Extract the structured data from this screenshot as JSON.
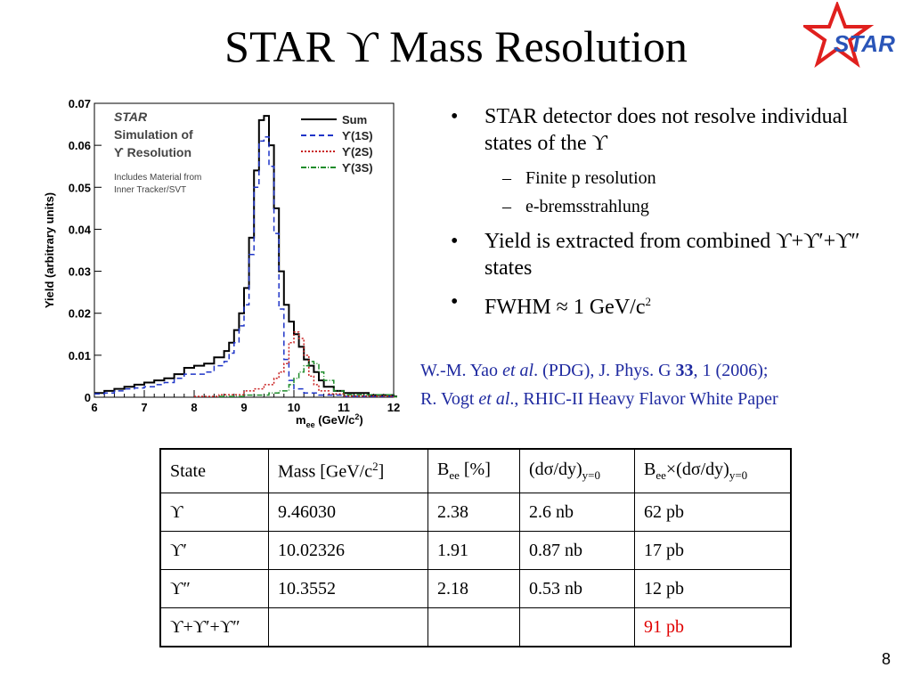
{
  "slide": {
    "title": "STAR ϒ Mass Resolution",
    "page_number": "8",
    "logo_text": "STAR"
  },
  "bullets": [
    {
      "level": 1,
      "text": "STAR detector does not resolve individual states of the ϒ"
    },
    {
      "level": 2,
      "text": "Finite p resolution"
    },
    {
      "level": 2,
      "text": "e-bremsstrahlung"
    },
    {
      "level": 1,
      "text": "Yield is extracted from combined ϒ+ϒ′+ϒ″ states"
    },
    {
      "level": 1,
      "text": "FWHM ≈ 1 GeV/c",
      "sup": "2"
    }
  ],
  "reference": {
    "line1_a": "W.-M. Yao ",
    "line1_b": "et al",
    "line1_c": ". (PDG), J. Phys. G ",
    "line1_d": "33",
    "line1_e": ", 1 (2006);",
    "line2_a": "R. Vogt ",
    "line2_b": "et al",
    "line2_c": "., RHIC-II Heavy Flavor White Paper",
    "color": "#1f2aa0"
  },
  "table": {
    "headers": {
      "state": "State",
      "mass": "Mass [GeV/c",
      "mass_sup": "2",
      "mass_end": "]",
      "bee": "B",
      "bee_sub": "ee",
      "bee_end": " [%]",
      "dsdy": "(dσ/dy)",
      "dsdy_sub": "y=0",
      "prod": "B",
      "prod_sub": "ee",
      "prod_mid": "×(dσ/dy)",
      "prod_sub2": "y=0"
    },
    "rows": [
      {
        "state": "ϒ",
        "mass": "9.46030",
        "bee": "2.38",
        "dsdy": "2.6 nb",
        "prod": "62 pb"
      },
      {
        "state": "ϒ′",
        "mass": "10.02326",
        "bee": "1.91",
        "dsdy": "0.87 nb",
        "prod": "17 pb"
      },
      {
        "state": "ϒ″",
        "mass": "10.3552",
        "bee": "2.18",
        "dsdy": "0.53 nb",
        "prod": "12 pb"
      },
      {
        "state": "ϒ+ϒ′+ϒ″",
        "mass": "",
        "bee": "",
        "dsdy": "",
        "prod": "91 pb"
      }
    ],
    "total_color": "#e00000"
  },
  "chart_data": {
    "type": "line",
    "ylabel": "Yield (arbitrary units)",
    "xlabel": "m",
    "xlabel_sub": "ee",
    "xlabel_unit": " (GeV/c",
    "xlabel_sup": "2",
    "xlabel_end": ")",
    "xlim": [
      6,
      12
    ],
    "ylim": [
      0,
      0.07
    ],
    "x_ticks": [
      "6",
      "7",
      "8",
      "9",
      "10",
      "11",
      "12"
    ],
    "y_ticks": [
      "0",
      "0.01",
      "0.02",
      "0.03",
      "0.04",
      "0.05",
      "0.06",
      "0.07"
    ],
    "annotation": {
      "line1": "STAR",
      "line2": "Simulation of",
      "line3": "ϒ Resolution",
      "line4": "Includes Material from",
      "line5": "Inner Tracker/SVT"
    },
    "legend_position": "top-right",
    "series": [
      {
        "name": "Sum",
        "color": "#000000",
        "dash": "",
        "x": [
          6.0,
          6.2,
          6.4,
          6.6,
          6.8,
          7.0,
          7.2,
          7.4,
          7.6,
          7.8,
          8.0,
          8.2,
          8.4,
          8.6,
          8.7,
          8.8,
          8.9,
          9.0,
          9.1,
          9.2,
          9.3,
          9.4,
          9.5,
          9.6,
          9.7,
          9.8,
          9.9,
          10.0,
          10.1,
          10.2,
          10.3,
          10.4,
          10.5,
          10.6,
          10.8,
          11.0,
          11.5,
          12.0
        ],
        "y": [
          0.001,
          0.0015,
          0.002,
          0.0025,
          0.003,
          0.0035,
          0.004,
          0.0045,
          0.0055,
          0.007,
          0.0075,
          0.008,
          0.0095,
          0.011,
          0.013,
          0.016,
          0.02,
          0.026,
          0.038,
          0.054,
          0.066,
          0.067,
          0.06,
          0.045,
          0.03,
          0.022,
          0.018,
          0.015,
          0.012,
          0.009,
          0.0075,
          0.006,
          0.004,
          0.0025,
          0.0015,
          0.001,
          0.0005,
          0.0002
        ]
      },
      {
        "name": "ϒ(1S)",
        "color": "#1f35c8",
        "dash": "6,4",
        "x": [
          6.0,
          6.2,
          6.4,
          6.6,
          6.8,
          7.0,
          7.2,
          7.4,
          7.6,
          7.8,
          8.0,
          8.2,
          8.4,
          8.6,
          8.7,
          8.8,
          8.9,
          9.0,
          9.1,
          9.2,
          9.3,
          9.4,
          9.5,
          9.6,
          9.7,
          9.8,
          9.9,
          10.0,
          10.2,
          10.5,
          11.0,
          12.0
        ],
        "y": [
          0.0008,
          0.001,
          0.0015,
          0.002,
          0.0022,
          0.0025,
          0.003,
          0.0035,
          0.0045,
          0.0055,
          0.0055,
          0.006,
          0.0075,
          0.0085,
          0.0105,
          0.013,
          0.017,
          0.022,
          0.034,
          0.05,
          0.061,
          0.062,
          0.055,
          0.039,
          0.021,
          0.009,
          0.004,
          0.002,
          0.001,
          0.0005,
          0.0002,
          0.0001
        ]
      },
      {
        "name": "ϒ(2S)",
        "color": "#c81e1e",
        "dash": "2,2",
        "x": [
          8.0,
          8.5,
          9.0,
          9.2,
          9.4,
          9.6,
          9.7,
          9.8,
          9.9,
          10.0,
          10.1,
          10.2,
          10.3,
          10.4,
          10.5,
          10.7,
          11.0,
          12.0
        ],
        "y": [
          0.0002,
          0.0006,
          0.0015,
          0.002,
          0.003,
          0.0045,
          0.006,
          0.008,
          0.013,
          0.0155,
          0.014,
          0.01,
          0.005,
          0.003,
          0.0015,
          0.0008,
          0.0003,
          0.0001
        ]
      },
      {
        "name": "ϒ(3S)",
        "color": "#1e8c2a",
        "dash": "6,2,1,2",
        "x": [
          8.5,
          9.0,
          9.5,
          9.7,
          9.9,
          10.0,
          10.1,
          10.2,
          10.3,
          10.4,
          10.5,
          10.6,
          10.8,
          11.0,
          12.0
        ],
        "y": [
          0.0002,
          0.0005,
          0.001,
          0.0015,
          0.003,
          0.0045,
          0.006,
          0.0075,
          0.0085,
          0.008,
          0.006,
          0.004,
          0.0015,
          0.0006,
          0.0001
        ]
      }
    ]
  }
}
